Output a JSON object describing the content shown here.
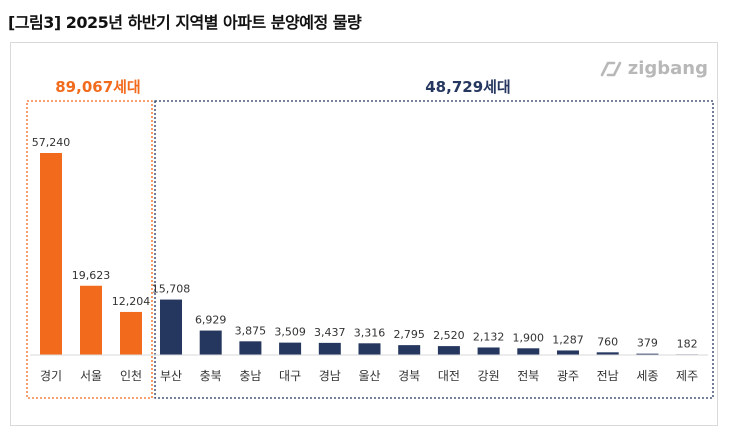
{
  "figure_title": "[그림3] 2025년 하반기 지역별 아파트 분양예정 물량",
  "logo": {
    "text": "zigbang",
    "icon": "zigbang-logo-icon"
  },
  "colors": {
    "capital": "#f26b1d",
    "regional": "#25375f",
    "capital_label": "#f26b1d",
    "regional_label": "#25375f"
  },
  "chart_data": {
    "type": "bar",
    "groups": [
      {
        "label": "89,067세대",
        "categories": [
          "경기",
          "서울",
          "인천"
        ],
        "values": [
          57240,
          19623,
          12204
        ],
        "value_labels": [
          "57,240",
          "19,623",
          "12,204"
        ]
      },
      {
        "label": "48,729세대",
        "categories": [
          "부산",
          "충북",
          "충남",
          "대구",
          "경남",
          "울산",
          "경북",
          "대전",
          "강원",
          "전북",
          "광주",
          "전남",
          "세종",
          "제주"
        ],
        "values": [
          15708,
          6929,
          3875,
          3509,
          3437,
          3316,
          2795,
          2520,
          2132,
          1900,
          1287,
          760,
          379,
          182
        ],
        "value_labels": [
          "15,708",
          "6,929",
          "3,875",
          "3,509",
          "3,437",
          "3,316",
          "2,795",
          "2,520",
          "2,132",
          "1,900",
          "1,287",
          "760",
          "379",
          "182"
        ]
      }
    ],
    "ylim": [
      0,
      57240
    ],
    "grid": false,
    "legend": "none"
  }
}
